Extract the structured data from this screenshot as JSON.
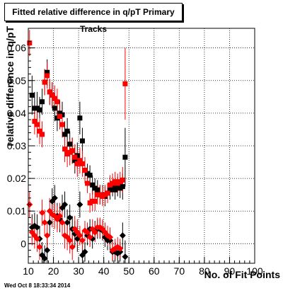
{
  "chart_data": {
    "type": "scatter",
    "title": "Fitted relative difference in q/pT Primary Tracks",
    "xlabel": "No. of Fit Points",
    "ylabel": "relative difference in q/pT",
    "xlim": [
      10,
      100
    ],
    "ylim": [
      -0.006,
      0.066
    ],
    "x_ticks": [
      "10",
      "20",
      "30",
      "40",
      "50",
      "60",
      "70",
      "80",
      "90",
      "100"
    ],
    "y_ticks": [
      "0",
      "0.01",
      "0.02",
      "0.03",
      "0.04",
      "0.05",
      "0.06"
    ],
    "grid": true,
    "timestamp": "Wed Oct  8 18:33:34 2014",
    "series": [
      {
        "marker": "square",
        "color": "#000000",
        "points": [
          {
            "x": 11.5,
            "y": 0.0455,
            "e": 0.006
          },
          {
            "x": 12.5,
            "y": 0.0415,
            "e": 0.005
          },
          {
            "x": 13.5,
            "y": 0.0415,
            "e": 0.005
          },
          {
            "x": 14.5,
            "y": 0.041,
            "e": 0.004
          },
          {
            "x": 15.5,
            "y": 0.0435,
            "e": 0.004
          },
          {
            "x": 16.5,
            "y": 0.0495,
            "e": 0.004
          },
          {
            "x": 17.5,
            "y": 0.0525,
            "e": 0.004
          },
          {
            "x": 18.5,
            "y": 0.0465,
            "e": 0.004
          },
          {
            "x": 19.5,
            "y": 0.0455,
            "e": 0.004
          },
          {
            "x": 20.5,
            "y": 0.0415,
            "e": 0.004
          },
          {
            "x": 21.5,
            "y": 0.0385,
            "e": 0.004
          },
          {
            "x": 22.5,
            "y": 0.04,
            "e": 0.004
          },
          {
            "x": 23.5,
            "y": 0.0395,
            "e": 0.004
          },
          {
            "x": 24.5,
            "y": 0.0335,
            "e": 0.004
          },
          {
            "x": 25.5,
            "y": 0.0345,
            "e": 0.004
          },
          {
            "x": 26.5,
            "y": 0.0305,
            "e": 0.004
          },
          {
            "x": 27.5,
            "y": 0.0285,
            "e": 0.004
          },
          {
            "x": 28.5,
            "y": 0.0255,
            "e": 0.004
          },
          {
            "x": 29.5,
            "y": 0.027,
            "e": 0.004
          },
          {
            "x": 30.5,
            "y": 0.0385,
            "e": 0.005
          },
          {
            "x": 31.5,
            "y": 0.0315,
            "e": 0.004
          },
          {
            "x": 32.5,
            "y": 0.0225,
            "e": 0.004
          },
          {
            "x": 33.5,
            "y": 0.0215,
            "e": 0.003
          },
          {
            "x": 34.5,
            "y": 0.021,
            "e": 0.003
          },
          {
            "x": 35.5,
            "y": 0.018,
            "e": 0.003
          },
          {
            "x": 36.5,
            "y": 0.017,
            "e": 0.003
          },
          {
            "x": 37.5,
            "y": 0.0165,
            "e": 0.003
          },
          {
            "x": 38.5,
            "y": 0.015,
            "e": 0.003
          },
          {
            "x": 39.5,
            "y": 0.015,
            "e": 0.003
          },
          {
            "x": 40.5,
            "y": 0.0145,
            "e": 0.003
          },
          {
            "x": 41.5,
            "y": 0.0155,
            "e": 0.003
          },
          {
            "x": 42.5,
            "y": 0.0165,
            "e": 0.003
          },
          {
            "x": 43.5,
            "y": 0.0175,
            "e": 0.003
          },
          {
            "x": 44.5,
            "y": 0.0165,
            "e": 0.003
          },
          {
            "x": 45.5,
            "y": 0.0175,
            "e": 0.003
          },
          {
            "x": 46.5,
            "y": 0.017,
            "e": 0.003
          },
          {
            "x": 47.5,
            "y": 0.0175,
            "e": 0.004
          },
          {
            "x": 48.5,
            "y": 0.0265,
            "e": 0.009
          }
        ]
      },
      {
        "marker": "square",
        "color": "#ff0000",
        "points": [
          {
            "x": 10.5,
            "y": 0.0615,
            "e": 0.004
          },
          {
            "x": 12.5,
            "y": 0.0375,
            "e": 0.004
          },
          {
            "x": 13.5,
            "y": 0.0365,
            "e": 0.004
          },
          {
            "x": 14.5,
            "y": 0.0345,
            "e": 0.004
          },
          {
            "x": 15.5,
            "y": 0.0335,
            "e": 0.004
          },
          {
            "x": 16.5,
            "y": 0.0495,
            "e": 0.004
          },
          {
            "x": 17.5,
            "y": 0.0515,
            "e": 0.004
          },
          {
            "x": 18.5,
            "y": 0.0465,
            "e": 0.004
          },
          {
            "x": 19.5,
            "y": 0.0455,
            "e": 0.004
          },
          {
            "x": 20.5,
            "y": 0.0445,
            "e": 0.004
          },
          {
            "x": 21.5,
            "y": 0.0435,
            "e": 0.004
          },
          {
            "x": 22.5,
            "y": 0.039,
            "e": 0.004
          },
          {
            "x": 23.5,
            "y": 0.0365,
            "e": 0.004
          },
          {
            "x": 24.5,
            "y": 0.029,
            "e": 0.004
          },
          {
            "x": 25.5,
            "y": 0.0275,
            "e": 0.004
          },
          {
            "x": 26.5,
            "y": 0.028,
            "e": 0.004
          },
          {
            "x": 27.5,
            "y": 0.0285,
            "e": 0.004
          },
          {
            "x": 28.5,
            "y": 0.0265,
            "e": 0.004
          },
          {
            "x": 29.5,
            "y": 0.0245,
            "e": 0.004
          },
          {
            "x": 30.5,
            "y": 0.0255,
            "e": 0.004
          },
          {
            "x": 31.5,
            "y": 0.0245,
            "e": 0.004
          },
          {
            "x": 32.5,
            "y": 0.0225,
            "e": 0.004
          },
          {
            "x": 33.5,
            "y": 0.0185,
            "e": 0.003
          },
          {
            "x": 34.5,
            "y": 0.0125,
            "e": 0.003
          },
          {
            "x": 35.5,
            "y": 0.013,
            "e": 0.003
          },
          {
            "x": 36.5,
            "y": 0.013,
            "e": 0.003
          },
          {
            "x": 37.5,
            "y": 0.015,
            "e": 0.003
          },
          {
            "x": 38.5,
            "y": 0.015,
            "e": 0.003
          },
          {
            "x": 39.5,
            "y": 0.0145,
            "e": 0.003
          },
          {
            "x": 40.5,
            "y": 0.015,
            "e": 0.003
          },
          {
            "x": 41.5,
            "y": 0.0155,
            "e": 0.003
          },
          {
            "x": 42.5,
            "y": 0.018,
            "e": 0.003
          },
          {
            "x": 43.5,
            "y": 0.0185,
            "e": 0.003
          },
          {
            "x": 44.5,
            "y": 0.019,
            "e": 0.003
          },
          {
            "x": 45.5,
            "y": 0.0185,
            "e": 0.003
          },
          {
            "x": 46.5,
            "y": 0.019,
            "e": 0.003
          },
          {
            "x": 47.5,
            "y": 0.0195,
            "e": 0.004
          },
          {
            "x": 48.5,
            "y": 0.049,
            "e": 0.011
          }
        ]
      },
      {
        "marker": "diamond",
        "color": "#000000",
        "points": [
          {
            "x": 11.5,
            "y": 0.005,
            "e": 0.004
          },
          {
            "x": 12.5,
            "y": 0.0055,
            "e": 0.004
          },
          {
            "x": 13.5,
            "y": 0.005,
            "e": 0.004
          },
          {
            "x": 14.5,
            "y": 0.0015,
            "e": 0.004
          },
          {
            "x": 15.5,
            "y": -0.0035,
            "e": 0.004
          },
          {
            "x": 16.5,
            "y": -0.0045,
            "e": 0.004
          },
          {
            "x": 17.5,
            "y": -0.002,
            "e": 0.004
          },
          {
            "x": 18.5,
            "y": 0.0065,
            "e": 0.004
          },
          {
            "x": 19.5,
            "y": 0.013,
            "e": 0.004
          },
          {
            "x": 20.5,
            "y": 0.014,
            "e": 0.004
          },
          {
            "x": 21.5,
            "y": 0.0085,
            "e": 0.004
          },
          {
            "x": 22.5,
            "y": 0.0075,
            "e": 0.004
          },
          {
            "x": 23.5,
            "y": 0.011,
            "e": 0.004
          },
          {
            "x": 24.5,
            "y": 0.012,
            "e": 0.004
          },
          {
            "x": 25.5,
            "y": 0.0065,
            "e": 0.004
          },
          {
            "x": 26.5,
            "y": 0.008,
            "e": 0.004
          },
          {
            "x": 27.5,
            "y": 0.0045,
            "e": 0.004
          },
          {
            "x": 28.5,
            "y": 0.003,
            "e": 0.004
          },
          {
            "x": 29.5,
            "y": 0.0015,
            "e": 0.004
          },
          {
            "x": 30.5,
            "y": 0.012,
            "e": 0.004
          },
          {
            "x": 31.5,
            "y": -0.0035,
            "e": 0.003
          },
          {
            "x": 32.5,
            "y": -0.0025,
            "e": 0.003
          },
          {
            "x": 33.5,
            "y": 0.0025,
            "e": 0.003
          },
          {
            "x": 34.5,
            "y": 0.0045,
            "e": 0.003
          },
          {
            "x": 35.5,
            "y": 0.0015,
            "e": 0.003
          },
          {
            "x": 36.5,
            "y": 0.004,
            "e": 0.003
          },
          {
            "x": 37.5,
            "y": 0.0045,
            "e": 0.003
          },
          {
            "x": 38.5,
            "y": 0.0045,
            "e": 0.003
          },
          {
            "x": 39.5,
            "y": 0.004,
            "e": 0.003
          },
          {
            "x": 40.5,
            "y": 0.002,
            "e": 0.003
          },
          {
            "x": 41.5,
            "y": 0.001,
            "e": 0.003
          },
          {
            "x": 42.5,
            "y": 0.001,
            "e": 0.003
          },
          {
            "x": 43.5,
            "y": -0.0025,
            "e": 0.003
          },
          {
            "x": 44.5,
            "y": -0.0025,
            "e": 0.003
          },
          {
            "x": 45.5,
            "y": -0.003,
            "e": 0.003
          },
          {
            "x": 46.5,
            "y": -0.0025,
            "e": 0.003
          },
          {
            "x": 47.5,
            "y": 0.0025,
            "e": 0.004
          },
          {
            "x": 48.5,
            "y": -0.004,
            "e": 0.005
          }
        ]
      },
      {
        "marker": "diamond",
        "color": "#ff0000",
        "points": [
          {
            "x": 10.5,
            "y": 0.012,
            "e": 0.004
          },
          {
            "x": 11.5,
            "y": 0.0035,
            "e": 0.004
          },
          {
            "x": 12.5,
            "y": 0.0025,
            "e": 0.004
          },
          {
            "x": 13.5,
            "y": 0.0015,
            "e": 0.004
          },
          {
            "x": 14.5,
            "y": -0.001,
            "e": 0.004
          },
          {
            "x": 15.5,
            "y": 0.0095,
            "e": 0.004
          },
          {
            "x": 16.5,
            "y": 0.0065,
            "e": 0.004
          },
          {
            "x": 17.5,
            "y": 0.0025,
            "e": 0.004
          },
          {
            "x": 18.5,
            "y": 0.01,
            "e": 0.004
          },
          {
            "x": 19.5,
            "y": 0.009,
            "e": 0.004
          },
          {
            "x": 20.5,
            "y": 0.0085,
            "e": 0.004
          },
          {
            "x": 21.5,
            "y": 0.0075,
            "e": 0.004
          },
          {
            "x": 22.5,
            "y": 0.0085,
            "e": 0.004
          },
          {
            "x": 23.5,
            "y": 0.0065,
            "e": 0.004
          },
          {
            "x": 24.5,
            "y": 0.0025,
            "e": 0.004
          },
          {
            "x": 25.5,
            "y": 0.002,
            "e": 0.004
          },
          {
            "x": 26.5,
            "y": 0.001,
            "e": 0.004
          },
          {
            "x": 27.5,
            "y": -0.001,
            "e": 0.004
          },
          {
            "x": 28.5,
            "y": 0.0045,
            "e": 0.004
          },
          {
            "x": 29.5,
            "y": 0.0035,
            "e": 0.004
          },
          {
            "x": 30.5,
            "y": 0.0025,
            "e": 0.003
          },
          {
            "x": 31.5,
            "y": 0.001,
            "e": 0.003
          },
          {
            "x": 32.5,
            "y": 0.004,
            "e": 0.003
          },
          {
            "x": 33.5,
            "y": 0.0035,
            "e": 0.003
          },
          {
            "x": 34.5,
            "y": 0.002,
            "e": 0.003
          },
          {
            "x": 35.5,
            "y": 0.0045,
            "e": 0.003
          },
          {
            "x": 36.5,
            "y": 0.0035,
            "e": 0.003
          },
          {
            "x": 37.5,
            "y": 0.005,
            "e": 0.003
          },
          {
            "x": 38.5,
            "y": 0.005,
            "e": 0.003
          },
          {
            "x": 39.5,
            "y": 0.0045,
            "e": 0.003
          },
          {
            "x": 40.5,
            "y": 0.0035,
            "e": 0.003
          },
          {
            "x": 41.5,
            "y": 0.0025,
            "e": 0.003
          },
          {
            "x": 42.5,
            "y": 0.002,
            "e": 0.003
          },
          {
            "x": 43.5,
            "y": -0.002,
            "e": 0.003
          },
          {
            "x": 44.5,
            "y": -0.0015,
            "e": 0.003
          },
          {
            "x": 45.5,
            "y": -0.001,
            "e": 0.003
          },
          {
            "x": 46.5,
            "y": -0.0015,
            "e": 0.003
          }
        ]
      }
    ]
  }
}
